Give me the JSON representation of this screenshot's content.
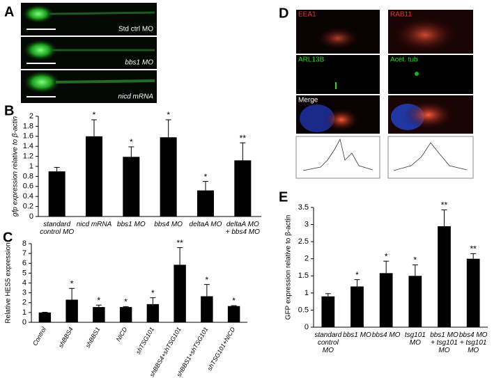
{
  "figure": {
    "panel_labels": [
      "A",
      "B",
      "C",
      "D",
      "E"
    ],
    "panel_a_images": [
      "Std ctrl MO",
      "bbs1 MO",
      "nicd mRNA"
    ],
    "panel_d_images": [
      "EEA1",
      "RAB11",
      "ARL13B",
      "Acet. tub",
      "Merge"
    ]
  },
  "chart_data": [
    {
      "type": "bar",
      "ylabel": "gfp expression relative to β-actin",
      "categories": [
        "standard control MO",
        "nicd mRNA",
        "bbs1 MO",
        "bbs4 MO",
        "deltaA MO",
        "deltaA MO + bbs4 MO"
      ],
      "values": [
        0.9,
        1.6,
        1.19,
        1.58,
        0.52,
        1.12
      ],
      "errors": [
        0.08,
        0.33,
        0.2,
        0.35,
        0.18,
        0.35
      ],
      "annotations": [
        null,
        "*",
        "*",
        "*",
        "*",
        "**"
      ],
      "color": "#000000",
      "ylim": [
        0,
        2
      ],
      "yticks": [
        0,
        0.2,
        0.4,
        0.6,
        0.8,
        1,
        1.2,
        1.4,
        1.6,
        1.8,
        2
      ]
    },
    {
      "type": "bar",
      "ylabel": "Relative HES5 expression",
      "categories": [
        "Control",
        "shBBS4",
        "shBBS1",
        "NICD",
        "shTSG101",
        "shBBS4+shTSG101",
        "shBBS1+shTSG101",
        "shTSG101+NICD"
      ],
      "values": [
        1.0,
        2.3,
        1.55,
        1.55,
        1.85,
        5.85,
        2.65,
        1.65
      ],
      "errors": [
        0.02,
        1.15,
        0.2,
        0.05,
        0.65,
        1.75,
        1.2,
        0.05
      ],
      "annotations": [
        null,
        "*",
        "*",
        "*",
        "*",
        "**",
        "*",
        "*"
      ],
      "color": "#000000",
      "ylim": [
        0,
        8
      ],
      "yticks": [
        0,
        1,
        2,
        3,
        4,
        5,
        6,
        7,
        8
      ]
    },
    {
      "type": "bar",
      "ylabel": "GFP expression relative to β-actin",
      "categories": [
        "standard control MO",
        "bbs1 MO",
        "bbs4 MO",
        "tsg101 MO",
        "bbs1 MO + tsg101 MO",
        "bbs4 MO + tsg101 MO"
      ],
      "values": [
        0.9,
        1.19,
        1.58,
        1.5,
        2.95,
        2.0
      ],
      "errors": [
        0.08,
        0.2,
        0.35,
        0.32,
        0.48,
        0.15
      ],
      "annotations": [
        null,
        "*",
        "*",
        "*",
        "**",
        "**"
      ],
      "color": "#000000",
      "ylim": [
        0,
        3.5
      ],
      "yticks": [
        0,
        0.5,
        1,
        1.5,
        2,
        2.5,
        3,
        3.5
      ]
    }
  ]
}
